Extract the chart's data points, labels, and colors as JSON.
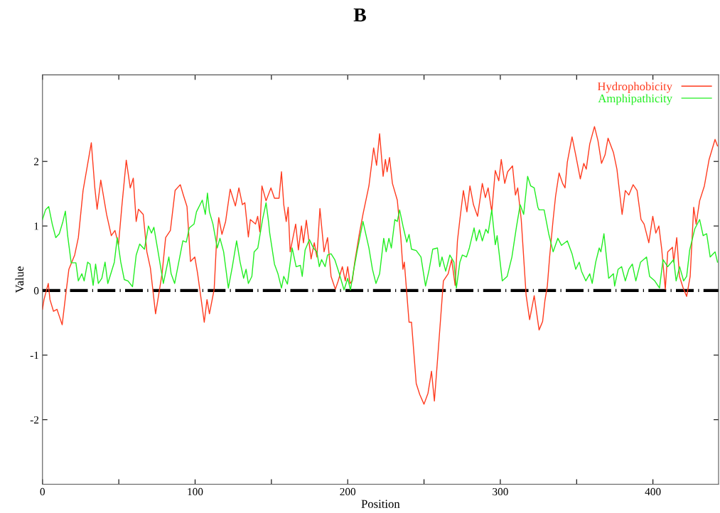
{
  "chart_data": {
    "type": "line",
    "title": "B",
    "xlabel": "Position",
    "ylabel": "Value",
    "xlim": [
      0,
      443
    ],
    "ylim": [
      -3,
      3.34
    ],
    "xticks": [
      0,
      {
        "value": 50,
        "label": null
      },
      100,
      {
        "value": 150,
        "label": null
      },
      200,
      {
        "value": 250,
        "label": null
      },
      300,
      {
        "value": 350,
        "label": null
      },
      400
    ],
    "yticks": [
      -2,
      -1,
      0,
      1,
      2
    ],
    "grid": false,
    "legend": "top right",
    "marker": "none",
    "line_style": "solid",
    "ref_lines": [
      {
        "axis": "y",
        "value": 0,
        "color": "#000000",
        "line_style": "dashed"
      }
    ],
    "series": [
      {
        "name": "Hydrophobicity",
        "color": "#ff3b1f",
        "x": [
          0,
          1,
          3.8,
          4.9,
          7.2,
          9.5,
          12.9,
          15,
          17.3,
          21.1,
          23.5,
          26.6,
          29.6,
          32,
          34.3,
          35.8,
          38.2,
          42,
          45.1,
          47.5,
          49.8,
          52.1,
          54.9,
          57.5,
          59.5,
          61.4,
          62.9,
          66,
          68.4,
          70.7,
          74.1,
          76.1,
          78.4,
          80.7,
          83.8,
          86.9,
          90.3,
          92.3,
          94.7,
          97,
          99.8,
          101.6,
          104,
          106,
          107.8,
          109.4,
          112.5,
          114,
          115.5,
          117.6,
          120,
          123,
          126.4,
          128.7,
          131,
          132.6,
          134.9,
          136.2,
          139.6,
          141,
          142.4,
          143.8,
          146.5,
          149.7,
          152,
          155,
          156.6,
          158.1,
          159.7,
          161,
          162.3,
          165.9,
          167.7,
          169.7,
          171,
          172.9,
          176,
          178.1,
          179.8,
          181.8,
          184.5,
          186.8,
          189.1,
          191.9,
          193.8,
          196.5,
          198.4,
          200,
          201.5,
          203,
          204.6,
          207.7,
          210,
          213.9,
          217,
          218.9,
          220.9,
          223.2,
          224.7,
          225.8,
          227.4,
          229.3,
          232.5,
          234.8,
          236.2,
          237.1,
          240.2,
          241.8,
          244.9,
          247.2,
          250,
          252.6,
          254.9,
          256.8,
          259.6,
          262.7,
          265.8,
          268.1,
          270.4,
          271.9,
          273.5,
          275.8,
          278.1,
          280.1,
          282.4,
          285.1,
          288.2,
          290.2,
          292,
          294.4,
          296.7,
          299,
          300.6,
          302.9,
          304.8,
          308,
          309.9,
          311.4,
          313.7,
          316.9,
          319.2,
          322.2,
          325.4,
          327.7,
          329.2,
          330.8,
          332.3,
          334.6,
          336.2,
          338.5,
          340.8,
          342.4,
          343.9,
          347,
          349.4,
          352.4,
          354.7,
          356.3,
          358.6,
          361.7,
          364,
          366.3,
          368.6,
          370.6,
          374.1,
          376.4,
          379.8,
          381.9,
          384.2,
          387,
          389.6,
          392.2,
          394.2,
          397.3,
          399.9,
          401.9,
          403.9,
          405.8,
          408.1,
          409.7,
          412.8,
          413.6,
          415.6,
          417.4,
          419.8,
          422.1,
          424.4,
          426.7,
          428.3,
          430.6,
          433.7,
          436.8,
          440.7,
          442.3
        ],
        "values": [
          -0.29,
          -0.14,
          0.11,
          -0.14,
          -0.32,
          -0.29,
          -0.53,
          -0.11,
          0.33,
          0.55,
          0.82,
          1.55,
          1.96,
          2.29,
          1.59,
          1.26,
          1.71,
          1.18,
          0.85,
          0.93,
          0.71,
          1.33,
          2.02,
          1.59,
          1.74,
          1.07,
          1.26,
          1.18,
          0.6,
          0.35,
          -0.36,
          -0.07,
          0.27,
          0.82,
          0.93,
          1.55,
          1.64,
          1.48,
          1.3,
          0.45,
          0.52,
          0.27,
          -0.14,
          -0.49,
          -0.14,
          -0.36,
          0.02,
          0.74,
          1.13,
          0.87,
          1.07,
          1.57,
          1.31,
          1.59,
          1.33,
          1.36,
          0.83,
          1.1,
          1.03,
          1.15,
          0.91,
          1.62,
          1.39,
          1.59,
          1.43,
          1.43,
          1.84,
          1.33,
          1.07,
          1.29,
          0.6,
          1.03,
          0.63,
          1.0,
          0.74,
          1.09,
          0.49,
          0.74,
          0.52,
          1.27,
          0.6,
          0.82,
          0.22,
          0.02,
          0.15,
          0.37,
          0.15,
          0.37,
          0.11,
          0.15,
          0.44,
          0.89,
          1.18,
          1.62,
          2.21,
          1.94,
          2.43,
          1.77,
          2.03,
          1.84,
          2.06,
          1.66,
          1.4,
          0.82,
          0.33,
          0.44,
          -0.49,
          -0.49,
          -1.44,
          -1.61,
          -1.76,
          -1.59,
          -1.25,
          -1.71,
          -0.84,
          0.15,
          0.26,
          0.48,
          0.08,
          0.77,
          1.1,
          1.55,
          1.22,
          1.62,
          1.33,
          1.15,
          1.66,
          1.44,
          1.59,
          1.22,
          1.86,
          1.7,
          2.03,
          1.66,
          1.84,
          1.93,
          1.48,
          1.59,
          1.1,
          -0.07,
          -0.45,
          -0.08,
          -0.61,
          -0.48,
          -0.16,
          0.07,
          0.52,
          1.1,
          1.46,
          1.82,
          1.66,
          1.59,
          1.99,
          2.38,
          2.1,
          1.73,
          1.97,
          1.88,
          2.27,
          2.54,
          2.32,
          1.97,
          2.1,
          2.36,
          2.14,
          1.88,
          1.18,
          1.55,
          1.48,
          1.64,
          1.55,
          1.1,
          1.03,
          0.74,
          1.15,
          0.89,
          1.0,
          0.63,
          0.02,
          0.6,
          0.67,
          0.44,
          0.82,
          0.22,
          0.04,
          -0.09,
          0.22,
          1.29,
          1.03,
          1.39,
          1.62,
          2.03,
          2.34,
          2.24
        ]
      },
      {
        "name": "Amphipathicity",
        "color": "#22ee22",
        "x": [
          0,
          2,
          4.1,
          6.4,
          8.7,
          11,
          13.4,
          15,
          16.5,
          18.8,
          21.9,
          23.5,
          25.8,
          27.3,
          29.6,
          31.2,
          33.2,
          34.8,
          36.6,
          38.9,
          41,
          42.8,
          47.1,
          49,
          51.3,
          53.6,
          56,
          59,
          61.4,
          63.7,
          66.8,
          69.4,
          71.4,
          73,
          76.1,
          79.2,
          82.8,
          84.3,
          86.6,
          89.3,
          92,
          94.2,
          96.2,
          99.3,
          100.9,
          104.7,
          106.7,
          108.1,
          109.4,
          111.7,
          114.5,
          116.3,
          118.7,
          121.8,
          124.4,
          127.2,
          129.5,
          131.8,
          133.4,
          134.9,
          137.2,
          138.7,
          141.1,
          144.2,
          146.5,
          148.1,
          148.9,
          152,
          154.3,
          156.6,
          158.1,
          160.5,
          163.6,
          166.2,
          169,
          170.2,
          172.1,
          174.9,
          177.5,
          179.8,
          181.4,
          182.9,
          185.2,
          186.8,
          189.1,
          191.5,
          194.5,
          197.6,
          200,
          201.8,
          203.8,
          206.1,
          208.5,
          210,
          213.9,
          216.2,
          218.5,
          220.9,
          223.6,
          225.2,
          227,
          228.6,
          230.9,
          232.5,
          234,
          236.3,
          238.7,
          240.2,
          241.8,
          244.9,
          248,
          251,
          253.4,
          255.7,
          258.8,
          260.3,
          261.8,
          264.2,
          266.9,
          269.6,
          271.2,
          273.5,
          275.1,
          277.8,
          279.7,
          282.8,
          284.3,
          286.3,
          288.2,
          290.5,
          292,
          294.4,
          296.7,
          297.9,
          301.3,
          304.5,
          307.6,
          310.6,
          313,
          315.3,
          317.9,
          319.9,
          322.2,
          324.6,
          325.4,
          328.7,
          331.7,
          334.6,
          337.7,
          340.1,
          343.9,
          347,
          349.4,
          351.7,
          353.2,
          356,
          358.6,
          360.2,
          362.5,
          364.8,
          365.9,
          367.9,
          371,
          374.1,
          374.9,
          377.2,
          379.5,
          381.9,
          384.2,
          386.5,
          388.8,
          391.9,
          395.8,
          397.8,
          401.2,
          404.3,
          406.6,
          409.7,
          413.6,
          415.2,
          417.5,
          420.1,
          422.1,
          424.1,
          427.5,
          430.6,
          432.9,
          435.2,
          437.5,
          440.7,
          442.3
        ],
        "values": [
          1.1,
          1.25,
          1.3,
          1.03,
          0.82,
          0.88,
          1.07,
          1.23,
          0.85,
          0.43,
          0.43,
          0.15,
          0.26,
          0.15,
          0.44,
          0.41,
          0.08,
          0.41,
          0.11,
          0.19,
          0.44,
          0.11,
          0.44,
          0.82,
          0.44,
          0.17,
          0.15,
          0.06,
          0.55,
          0.72,
          0.64,
          1.0,
          0.89,
          0.98,
          0.55,
          0.11,
          0.52,
          0.26,
          0.11,
          0.44,
          0.77,
          0.75,
          0.97,
          1.03,
          1.22,
          1.4,
          1.18,
          1.51,
          1.22,
          1.03,
          0.66,
          0.81,
          0.6,
          0.04,
          0.37,
          0.77,
          0.44,
          0.19,
          0.33,
          0.11,
          0.22,
          0.6,
          0.66,
          1.1,
          1.36,
          1.07,
          0.89,
          0.41,
          0.26,
          0.04,
          0.22,
          0.1,
          0.66,
          0.37,
          0.39,
          0.22,
          0.63,
          0.79,
          0.66,
          0.6,
          0.37,
          0.48,
          0.37,
          0.55,
          0.57,
          0.48,
          0.26,
          0.01,
          0.19,
          0.01,
          0.3,
          0.6,
          0.89,
          1.07,
          0.66,
          0.33,
          0.11,
          0.26,
          0.81,
          0.6,
          0.81,
          0.66,
          1.1,
          1.07,
          1.25,
          0.99,
          0.75,
          0.87,
          0.64,
          0.62,
          0.52,
          0.07,
          0.33,
          0.64,
          0.66,
          0.37,
          0.52,
          0.3,
          0.55,
          0.44,
          0.04,
          0.44,
          0.55,
          0.52,
          0.66,
          0.97,
          0.77,
          0.94,
          0.77,
          0.95,
          0.89,
          1.25,
          0.71,
          0.85,
          0.15,
          0.22,
          0.52,
          0.99,
          1.33,
          1.18,
          1.77,
          1.62,
          1.59,
          1.29,
          1.25,
          1.25,
          0.88,
          0.6,
          0.81,
          0.7,
          0.77,
          0.57,
          0.33,
          0.44,
          0.3,
          0.15,
          0.26,
          0.11,
          0.44,
          0.66,
          0.6,
          0.88,
          0.19,
          0.26,
          0.07,
          0.33,
          0.37,
          0.15,
          0.33,
          0.41,
          0.15,
          0.44,
          0.52,
          0.22,
          0.15,
          0.04,
          0.48,
          0.37,
          0.48,
          0.15,
          0.37,
          0.15,
          0.22,
          0.63,
          0.96,
          1.1,
          0.85,
          0.88,
          0.52,
          0.6,
          0.44
        ]
      }
    ]
  }
}
